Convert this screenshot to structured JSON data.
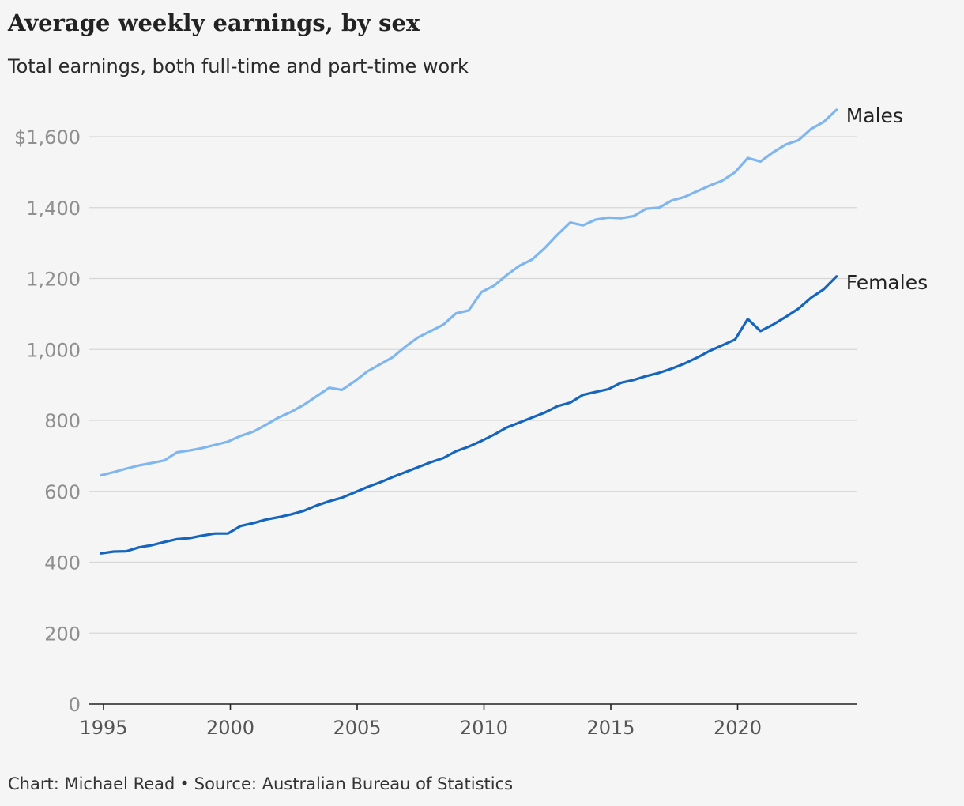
{
  "header": {
    "title": "Average weekly earnings, by sex",
    "subtitle": "Total earnings, both full-time and part-time work"
  },
  "footer": {
    "credit": "Chart: Michael Read",
    "separator": "•",
    "source": "Source: Australian Bureau of Statistics"
  },
  "colors": {
    "males": "#7fb6f0",
    "females": "#1565c0",
    "grid": "#d6d6d6",
    "axis": "#222222",
    "tick_text": "#8f8f8f"
  },
  "chart_data": {
    "type": "line",
    "title": "Average weekly earnings, by sex",
    "subtitle": "Total earnings, both full-time and part-time work",
    "xlabel": "",
    "ylabel": "",
    "xlim": [
      1995,
      2024
    ],
    "ylim": [
      0,
      1600
    ],
    "grid": true,
    "legend": "direct labels at line ends (right)",
    "y_ticks": [
      0,
      200,
      400,
      600,
      800,
      1000,
      1200,
      1400,
      1600
    ],
    "y_tick_labels": [
      "0",
      "200",
      "400",
      "600",
      "800",
      "1,000",
      "1,200",
      "1,400",
      "$1,600"
    ],
    "x_ticks": [
      1995,
      2000,
      2005,
      2010,
      2015,
      2020
    ],
    "x_tick_labels": [
      "1995",
      "2000",
      "2005",
      "2010",
      "2015",
      "2020"
    ],
    "x": [
      1994.9,
      1995.4,
      1995.9,
      1996.4,
      1996.9,
      1997.4,
      1997.9,
      1998.4,
      1998.9,
      1999.4,
      1999.9,
      2000.4,
      2000.9,
      2001.4,
      2001.9,
      2002.4,
      2002.9,
      2003.4,
      2003.9,
      2004.4,
      2004.9,
      2005.4,
      2005.9,
      2006.4,
      2006.9,
      2007.4,
      2007.9,
      2008.4,
      2008.9,
      2009.4,
      2009.9,
      2010.4,
      2010.9,
      2011.4,
      2011.9,
      2012.4,
      2012.9,
      2013.4,
      2013.9,
      2014.4,
      2014.9,
      2015.4,
      2015.9,
      2016.4,
      2016.9,
      2017.4,
      2017.9,
      2018.4,
      2018.9,
      2019.4,
      2019.9,
      2020.4,
      2020.9,
      2021.4,
      2021.9,
      2022.4,
      2022.9,
      2023.4,
      2023.9
    ],
    "series": [
      {
        "name": "Males",
        "color": "#7fb6f0",
        "values": [
          645,
          654,
          664,
          673,
          680,
          687,
          710,
          715,
          722,
          731,
          740,
          756,
          768,
          787,
          808,
          824,
          844,
          868,
          892,
          886,
          910,
          938,
          958,
          978,
          1008,
          1034,
          1052,
          1070,
          1102,
          1110,
          1162,
          1180,
          1210,
          1236,
          1254,
          1286,
          1324,
          1358,
          1350,
          1366,
          1372,
          1370,
          1376,
          1397,
          1400,
          1420,
          1430,
          1446,
          1462,
          1476,
          1500,
          1540,
          1530,
          1556,
          1578,
          1590,
          1622,
          1642,
          1676
        ]
      },
      {
        "name": "Females",
        "color": "#1565c0",
        "values": [
          425,
          430,
          431,
          442,
          448,
          457,
          465,
          468,
          475,
          481,
          481,
          502,
          510,
          520,
          527,
          535,
          545,
          560,
          572,
          582,
          597,
          612,
          625,
          640,
          654,
          668,
          682,
          694,
          713,
          726,
          742,
          760,
          780,
          794,
          808,
          822,
          840,
          850,
          872,
          880,
          888,
          906,
          914,
          925,
          934,
          946,
          960,
          977,
          996,
          1012,
          1028,
          1086,
          1052,
          1070,
          1092,
          1115,
          1146,
          1170,
          1206
        ]
      }
    ]
  }
}
